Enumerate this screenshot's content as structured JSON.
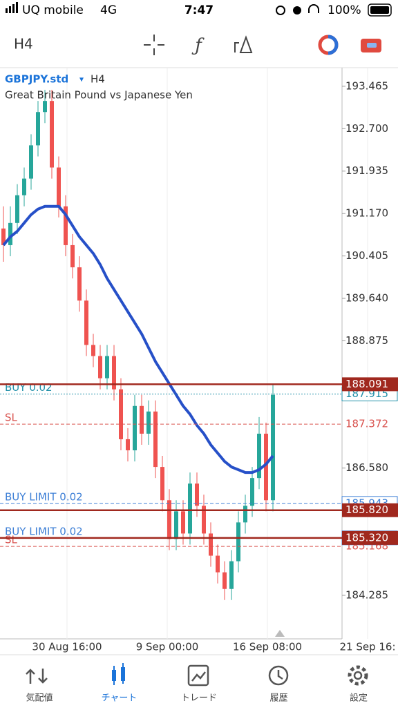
{
  "status_bar": {
    "carrier": "UQ mobile",
    "network": "4G",
    "time": "7:47",
    "battery": "100%"
  },
  "toolbar": {
    "timeframe": "H4"
  },
  "chart_data": {
    "type": "candlestick",
    "symbol": "GBPJPY.std",
    "timeframe": "H4",
    "subtitle": "Great Britain Pound vs Japanese Yen",
    "ylim": [
      183.5,
      193.8
    ],
    "yticks": [
      193.465,
      {
        "value": 192.7,
        "label": "192.700"
      },
      191.935,
      {
        "value": 191.17,
        "label": "191.170"
      },
      190.405,
      {
        "value": 189.64,
        "label": "189.640"
      },
      188.875,
      {
        "value": 186.58,
        "label": "186.580"
      },
      184.285
    ],
    "x_labels": [
      "30 Aug 16:00",
      "9 Sep 00:00",
      "16 Sep 08:00",
      "21 Sep 16:"
    ],
    "up_color": "#26a69a",
    "down_color": "#ef5350",
    "open": [
      190.9,
      190.6,
      191.0,
      191.5,
      191.8,
      192.4,
      193.0,
      193.2,
      192.0,
      191.3,
      190.6,
      190.2,
      189.6,
      188.8,
      188.6,
      188.2,
      188.6,
      188.0,
      187.1,
      186.9,
      187.7,
      187.2,
      187.6,
      186.6,
      186.0,
      185.3,
      185.8,
      185.4,
      186.3,
      185.9,
      185.4,
      185.0,
      184.7,
      184.4,
      184.9,
      185.6,
      185.9,
      186.4,
      187.2,
      186.0
    ],
    "high": [
      191.3,
      191.3,
      191.7,
      192.0,
      192.6,
      193.2,
      193.4,
      193.4,
      192.2,
      191.5,
      190.8,
      190.4,
      189.8,
      189.0,
      188.8,
      188.8,
      188.8,
      188.2,
      187.3,
      187.9,
      187.9,
      187.8,
      187.8,
      186.8,
      186.2,
      186.0,
      186.0,
      186.5,
      186.5,
      186.1,
      185.6,
      185.2,
      184.9,
      185.1,
      185.8,
      186.1,
      186.6,
      187.5,
      187.4,
      188.1
    ],
    "low": [
      190.3,
      190.4,
      190.8,
      191.3,
      191.6,
      192.2,
      192.8,
      191.8,
      191.1,
      190.4,
      190.0,
      189.4,
      188.6,
      188.4,
      188.0,
      188.0,
      187.8,
      186.9,
      186.7,
      186.7,
      187.0,
      187.0,
      186.4,
      185.8,
      185.1,
      185.1,
      185.2,
      185.2,
      185.7,
      185.2,
      184.8,
      184.5,
      184.2,
      184.2,
      184.7,
      185.4,
      185.7,
      186.2,
      185.8,
      185.8
    ],
    "close": [
      190.6,
      191.0,
      191.5,
      191.8,
      192.4,
      193.0,
      193.2,
      192.0,
      191.3,
      190.6,
      190.2,
      189.6,
      188.8,
      188.6,
      188.2,
      188.6,
      188.0,
      187.1,
      186.9,
      187.7,
      187.2,
      187.6,
      186.6,
      186.0,
      185.3,
      185.8,
      185.4,
      186.3,
      185.9,
      185.4,
      185.0,
      184.7,
      184.4,
      184.9,
      185.6,
      185.9,
      186.4,
      187.2,
      186.0,
      187.9
    ],
    "ma": {
      "color": "#2650c8",
      "values": [
        190.6,
        190.75,
        190.85,
        191.0,
        191.15,
        191.25,
        191.3,
        191.3,
        191.3,
        191.15,
        190.95,
        190.75,
        190.6,
        190.45,
        190.25,
        190.0,
        189.8,
        189.6,
        189.4,
        189.2,
        189.0,
        188.75,
        188.5,
        188.3,
        188.1,
        187.9,
        187.7,
        187.55,
        187.35,
        187.2,
        187.0,
        186.85,
        186.7,
        186.6,
        186.55,
        186.5,
        186.5,
        186.55,
        186.65,
        186.8
      ]
    },
    "price_lines": [
      {
        "price": 187.915,
        "label": "187.915",
        "color": "#1f8fa8",
        "style": "dotted",
        "box": "outline",
        "text": "BUY 0.02"
      },
      {
        "price": 187.372,
        "label": "187.372",
        "color": "#d9534f",
        "style": "dashed",
        "box": "none",
        "text": "SL"
      },
      {
        "price": 185.943,
        "label": "185.943",
        "color": "#3d7fd6",
        "style": "dashed",
        "box": "outline",
        "text": "BUY LIMIT 0.02"
      },
      {
        "price": 185.321,
        "label": "185.321",
        "color": "#3d7fd6",
        "style": "dashed",
        "box": "outline",
        "text": "BUY LIMIT 0.02"
      },
      {
        "price": 185.168,
        "label": "185.168",
        "color": "#d9534f",
        "style": "dashed",
        "box": "none",
        "text": "SL"
      },
      {
        "price": 188.091,
        "label": "188.091",
        "color": "#a0281e",
        "style": "solid",
        "box": "filled"
      },
      {
        "price": 185.82,
        "label": "185.820",
        "color": "#a0281e",
        "style": "solid",
        "box": "filled"
      },
      {
        "price": 185.32,
        "label": "185.320",
        "color": "#a0281e",
        "style": "solid",
        "box": "filled"
      }
    ]
  },
  "tab_bar": {
    "active": 1,
    "tabs": [
      "気配値",
      "チャート",
      "トレード",
      "履歴",
      "設定"
    ]
  }
}
